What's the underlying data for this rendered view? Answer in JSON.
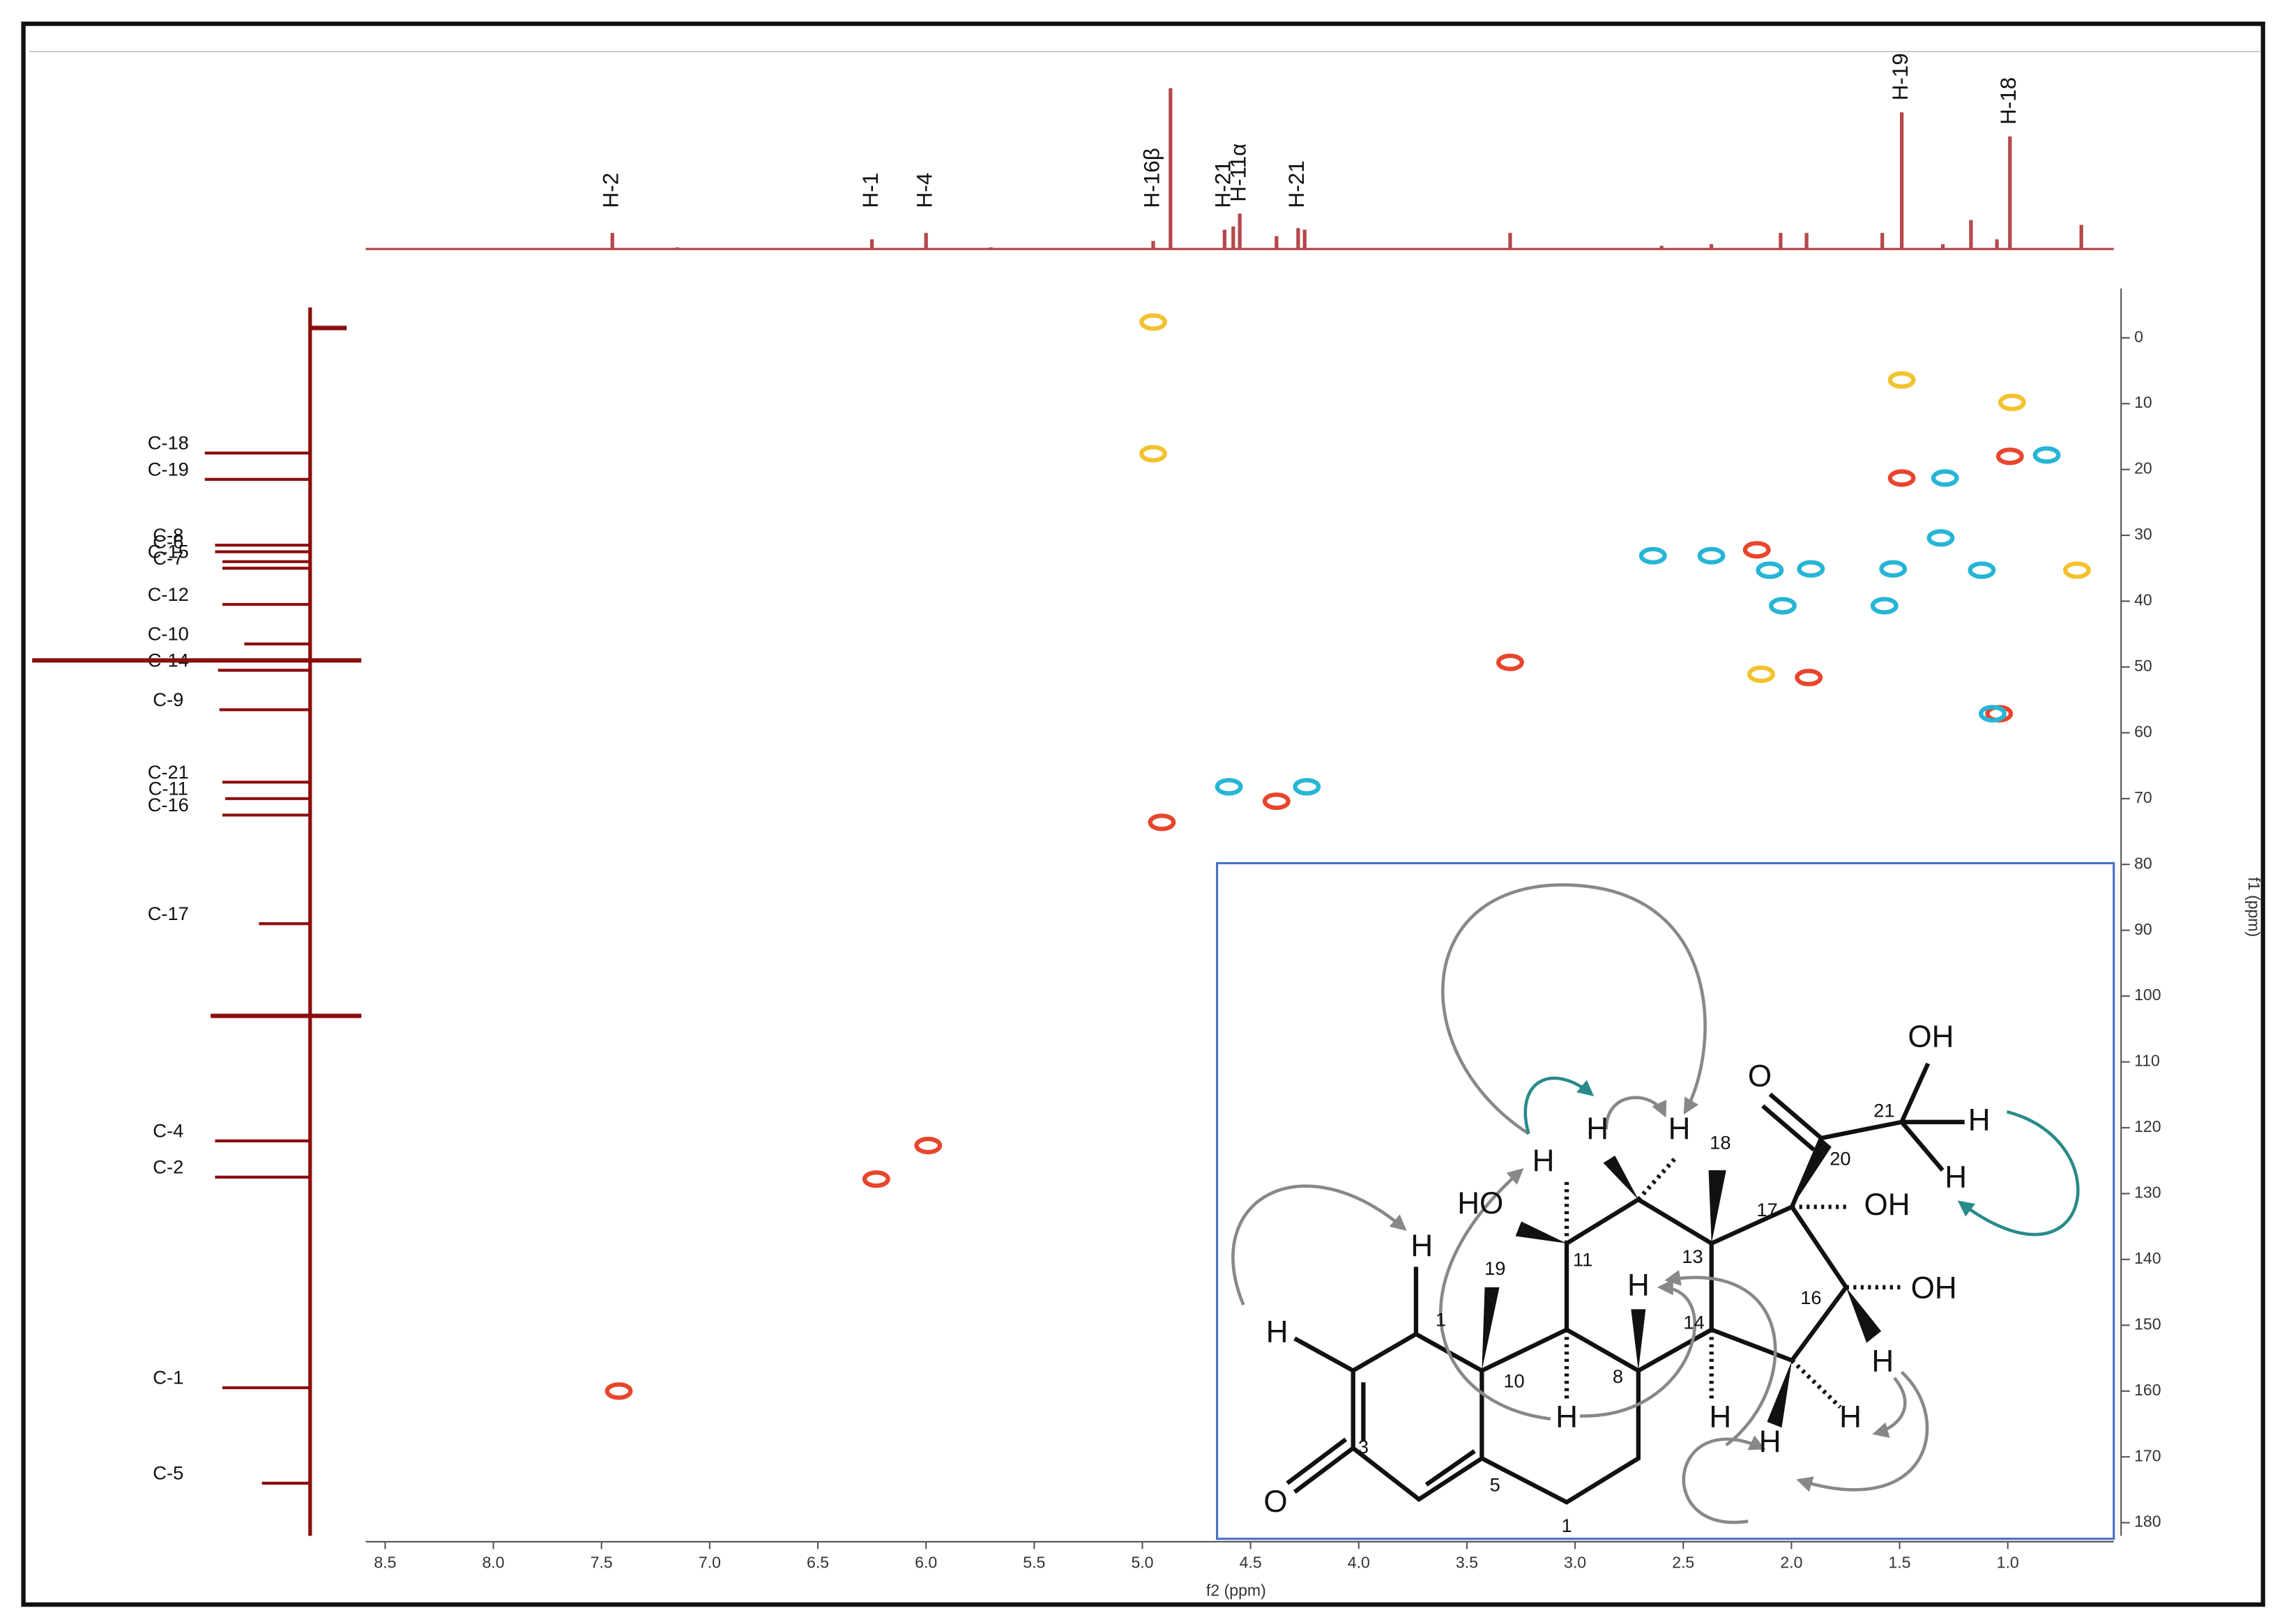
{
  "chart_data": {
    "type": "scatter",
    "x_label": "f2 (ppm)",
    "y_label": "f1 (ppm)",
    "xlim": [
      8.59,
      0.51
    ],
    "ylim": [
      -7.5,
      182
    ],
    "xticks": [
      8.5,
      {
        "value": 8,
        "label": "8.0"
      },
      7.5,
      {
        "value": 7,
        "label": "7.0"
      },
      6.5,
      {
        "value": 6,
        "label": "6.0"
      },
      5.5,
      {
        "value": 5,
        "label": "5.0"
      },
      4.5,
      {
        "value": 4,
        "label": "4.0"
      },
      3.5,
      {
        "value": 3,
        "label": "3.0"
      },
      2.5,
      {
        "value": 2,
        "label": "2.0"
      },
      1.5,
      {
        "value": 1,
        "label": "1.0"
      }
    ],
    "yticks": [
      0,
      10,
      20,
      30,
      40,
      50,
      60,
      70,
      80,
      90,
      100,
      110,
      120,
      130,
      140,
      150,
      160,
      170,
      180
    ],
    "series": [
      {
        "color": "#e8452c",
        "x": [
          0.99,
          1.49,
          2.16,
          3.3,
          1.92,
          1.04,
          4.38,
          4.91,
          5.99,
          6.23,
          7.42
        ],
        "values": [
          18,
          21.3,
          32.2,
          49.3,
          51.6,
          57.1,
          70.4,
          73.6,
          122.7,
          127.8,
          160
        ]
      },
      {
        "color": "#26b5d6",
        "x": [
          0.82,
          1.29,
          2.64,
          2.37,
          2.1,
          1.91,
          1.53,
          1.12,
          1.31,
          2.04,
          1.57,
          4.6,
          4.24,
          1.07
        ],
        "values": [
          17.8,
          21.3,
          33.1,
          33.1,
          35.3,
          35.1,
          35.1,
          35.3,
          30.4,
          40.7,
          40.7,
          68.2,
          68.2,
          57.1
        ]
      },
      {
        "color": "#f2c22e",
        "x": [
          4.95,
          4.95,
          1.49,
          0.98,
          0.68,
          2.14
        ],
        "values": [
          -2.4,
          17.6,
          6.4,
          9.8,
          35.3,
          51.1
        ]
      }
    ],
    "proton_spectrum": {
      "color": "#b5474a",
      "ppm": [
        7.45,
        7.15,
        6.25,
        6.0,
        5.7,
        4.95,
        4.87,
        4.62,
        4.58,
        4.55,
        4.38,
        4.28,
        4.25,
        3.3,
        2.6,
        2.37,
        2.05,
        1.93,
        1.58,
        1.49,
        1.3,
        1.17,
        1.05,
        0.99,
        0.66
      ],
      "intensity": [
        10,
        1,
        6,
        10,
        1,
        5,
        100,
        12,
        14,
        22,
        8,
        13,
        12,
        10,
        2,
        3,
        10,
        10,
        10,
        85,
        3,
        18,
        6,
        70,
        15
      ],
      "labels": [
        {
          "text": "H-2",
          "ppm": 7.45
        },
        {
          "text": "H-1",
          "ppm": 6.25
        },
        {
          "text": "H-4",
          "ppm": 6.0
        },
        {
          "text": "H-16β",
          "ppm": 4.95
        },
        {
          "text": "H-21",
          "ppm": 4.62
        },
        {
          "text": "H-11α",
          "ppm": 4.55
        },
        {
          "text": "H-21",
          "ppm": 4.28
        },
        {
          "text": "H-19",
          "ppm": 1.49
        },
        {
          "text": "H-18",
          "ppm": 0.99
        }
      ]
    },
    "carbon_spectrum": {
      "color": "#8b0d0d",
      "assignments": [
        {
          "text": "C-18",
          "ppm": 17.5,
          "intensity": 72
        },
        {
          "text": "C-19",
          "ppm": 21.5,
          "intensity": 72
        },
        {
          "text": "C-8",
          "ppm": 31.5,
          "intensity": 65
        },
        {
          "text": "C-6",
          "ppm": 32.5,
          "intensity": 65
        },
        {
          "text": "C-15",
          "ppm": 34,
          "intensity": 60
        },
        {
          "text": "C-7",
          "ppm": 35,
          "intensity": 60
        },
        {
          "text": "C-12",
          "ppm": 40.5,
          "intensity": 60
        },
        {
          "text": "C-10",
          "ppm": 46.5,
          "intensity": 45
        },
        {
          "text": "C-14",
          "ppm": 50.5,
          "intensity": 63
        },
        {
          "text": "C-9",
          "ppm": 56.5,
          "intensity": 62
        },
        {
          "text": "C-21",
          "ppm": 67.5,
          "intensity": 60
        },
        {
          "text": "C-11",
          "ppm": 70,
          "intensity": 58
        },
        {
          "text": "C-16",
          "ppm": 72.5,
          "intensity": 60
        },
        {
          "text": "C-17",
          "ppm": 89,
          "intensity": 35
        },
        {
          "text": "C-4",
          "ppm": 122,
          "intensity": 65
        },
        {
          "text": "C-2",
          "ppm": 127.5,
          "intensity": 65
        },
        {
          "text": "C-1",
          "ppm": 159.5,
          "intensity": 60
        },
        {
          "text": "C-5",
          "ppm": 174,
          "intensity": 33
        }
      ],
      "other_peaks": {
        "ppm": [
          49,
          103,
          -1.5
        ],
        "intensity": [
          190,
          68,
          -25
        ]
      }
    }
  },
  "structure": {
    "labels": [
      "H",
      "H",
      "1",
      "3",
      "O",
      "5",
      "10",
      "19",
      "1",
      "11",
      "HO",
      "H",
      "H",
      "H",
      "18",
      "13",
      "H",
      "8",
      "14",
      "H",
      "H",
      "17",
      "OH",
      "16",
      "OH",
      "H",
      "H",
      "H",
      "20",
      "O",
      "21",
      "OH",
      "H",
      "H"
    ]
  }
}
